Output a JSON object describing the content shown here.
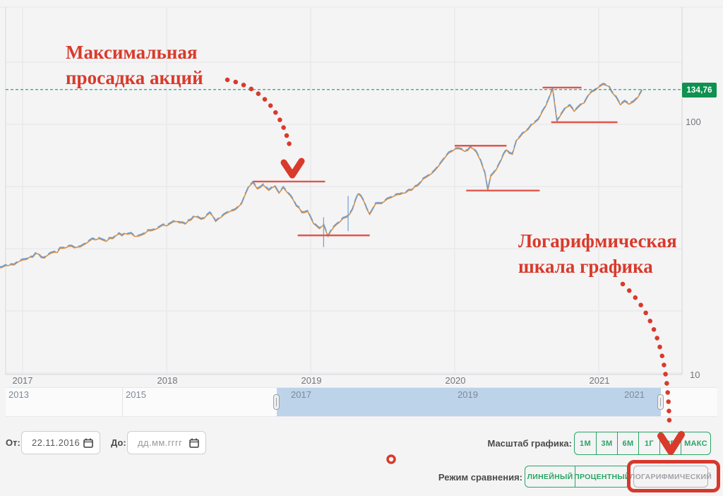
{
  "annotations": {
    "drawdown_label": "Максимальная\nпросадка акций",
    "log_scale_label": "Логарифмическая\nшкала графика",
    "red_color": "#d93a2b"
  },
  "chart_data": {
    "type": "line",
    "title": "",
    "x_ticks": [
      "2017",
      "2018",
      "2019",
      "2020",
      "2021"
    ],
    "y_axis": {
      "scale": "log",
      "tick_labels": [
        "100",
        "10"
      ],
      "tick_values": [
        100,
        10
      ]
    },
    "current_price": 134.76,
    "current_price_label": "134,76",
    "grid": true,
    "series": [
      {
        "name": "share-price",
        "color": "#6f9fd0",
        "alt_color": "#d98e3f",
        "points": [
          [
            2016.84,
            26.7
          ],
          [
            2016.92,
            27.5
          ],
          [
            2016.98,
            28.4
          ],
          [
            2017.05,
            29.5
          ],
          [
            2017.11,
            30.3
          ],
          [
            2017.15,
            29.2
          ],
          [
            2017.22,
            30.8
          ],
          [
            2017.28,
            31.9
          ],
          [
            2017.38,
            32.3
          ],
          [
            2017.46,
            34.0
          ],
          [
            2017.53,
            34.9
          ],
          [
            2017.58,
            34.0
          ],
          [
            2017.65,
            35.9
          ],
          [
            2017.73,
            36.3
          ],
          [
            2017.8,
            35.6
          ],
          [
            2017.87,
            37.5
          ],
          [
            2017.95,
            38.7
          ],
          [
            2018.0,
            39.2
          ],
          [
            2018.07,
            40.8
          ],
          [
            2018.13,
            39.8
          ],
          [
            2018.19,
            42.7
          ],
          [
            2018.24,
            41.6
          ],
          [
            2018.3,
            44.1
          ],
          [
            2018.34,
            40.8
          ],
          [
            2018.4,
            43.5
          ],
          [
            2018.46,
            45.0
          ],
          [
            2018.52,
            47.9
          ],
          [
            2018.57,
            56.0
          ],
          [
            2018.6,
            58.2
          ],
          [
            2018.63,
            54.9
          ],
          [
            2018.67,
            57.0
          ],
          [
            2018.71,
            54.2
          ],
          [
            2018.75,
            56.3
          ],
          [
            2018.78,
            52.8
          ],
          [
            2018.81,
            55.6
          ],
          [
            2018.86,
            51.5
          ],
          [
            2018.9,
            47.0
          ],
          [
            2018.94,
            44.1
          ],
          [
            2018.98,
            44.7
          ],
          [
            2019.02,
            40.0
          ],
          [
            2019.06,
            38.2
          ],
          [
            2019.09,
            39.5
          ],
          [
            2019.12,
            35.6
          ],
          [
            2019.16,
            38.7
          ],
          [
            2019.2,
            40.5
          ],
          [
            2019.25,
            42.4
          ],
          [
            2019.29,
            45.5
          ],
          [
            2019.33,
            52.5
          ],
          [
            2019.37,
            48.9
          ],
          [
            2019.41,
            43.5
          ],
          [
            2019.45,
            47.9
          ],
          [
            2019.51,
            48.9
          ],
          [
            2019.58,
            51.5
          ],
          [
            2019.64,
            52.8
          ],
          [
            2019.7,
            54.2
          ],
          [
            2019.76,
            57.8
          ],
          [
            2019.82,
            62.0
          ],
          [
            2019.89,
            67.9
          ],
          [
            2019.96,
            76.3
          ],
          [
            2020.02,
            79.3
          ],
          [
            2020.07,
            77.3
          ],
          [
            2020.11,
            80.3
          ],
          [
            2020.15,
            76.8
          ],
          [
            2020.18,
            71.0
          ],
          [
            2020.21,
            63.3
          ],
          [
            2020.23,
            54.2
          ],
          [
            2020.25,
            61.6
          ],
          [
            2020.29,
            65.7
          ],
          [
            2020.32,
            71.0
          ],
          [
            2020.36,
            78.3
          ],
          [
            2020.4,
            75.3
          ],
          [
            2020.43,
            85.7
          ],
          [
            2020.47,
            90.8
          ],
          [
            2020.51,
            94.4
          ],
          [
            2020.55,
            100.0
          ],
          [
            2020.58,
            103.3
          ],
          [
            2020.61,
            111.6
          ],
          [
            2020.65,
            123.7
          ],
          [
            2020.68,
            137.2
          ],
          [
            2020.71,
            101.9
          ],
          [
            2020.74,
            108.7
          ],
          [
            2020.77,
            115.2
          ],
          [
            2020.8,
            117.5
          ],
          [
            2020.83,
            111.6
          ],
          [
            2020.86,
            116.0
          ],
          [
            2020.9,
            120.6
          ],
          [
            2020.93,
            129.4
          ],
          [
            2020.97,
            134.5
          ],
          [
            2021.0,
            139.0
          ],
          [
            2021.03,
            142.6
          ],
          [
            2021.07,
            139.9
          ],
          [
            2021.09,
            132.8
          ],
          [
            2021.12,
            126.9
          ],
          [
            2021.15,
            118.3
          ],
          [
            2021.18,
            122.1
          ],
          [
            2021.21,
            119.0
          ],
          [
            2021.24,
            121.4
          ],
          [
            2021.27,
            126.1
          ],
          [
            2021.3,
            134.8
          ]
        ]
      }
    ],
    "spikes": [
      [
        2019.09,
        42,
        32
      ],
      [
        2019.26,
        51,
        37
      ]
    ],
    "drawdowns": [
      {
        "high": 58.2,
        "high_from": 2018.6,
        "high_to": 2019.1,
        "low": 35.6,
        "low_from": 2018.91,
        "low_to": 2019.41
      },
      {
        "high": 80.7,
        "high_from": 2020.0,
        "high_to": 2020.36,
        "low": 53.6,
        "low_from": 2020.08,
        "low_to": 2020.59
      },
      {
        "high": 137.2,
        "high_from": 2020.61,
        "high_to": 2020.88,
        "low": 100.0,
        "low_from": 2020.67,
        "low_to": 2021.13
      }
    ],
    "drawdown_line_color": "#e0564b",
    "price_line_color": "#2aa183",
    "tag_color": "#0f9150"
  },
  "navigator": {
    "labels": [
      "2013",
      "2015",
      "2017",
      "2019",
      "2021"
    ],
    "selection_color": "#bdd3ea"
  },
  "date_filter": {
    "from_label": "От:",
    "from_value": "22.11.2016",
    "to_label": "До:",
    "to_placeholder": "дд.мм.гггг"
  },
  "scale_control": {
    "label": "Масштаб графика:",
    "accent": "#2aa564",
    "buttons": [
      {
        "label": "1М"
      },
      {
        "label": "3М"
      },
      {
        "label": "6М"
      },
      {
        "label": "1Г"
      },
      {
        "label": "3Г"
      },
      {
        "label": "МАКС"
      }
    ]
  },
  "mode_control": {
    "label": "Режим сравнения:",
    "buttons": [
      {
        "label": "ЛИНЕЙНЫЙ"
      },
      {
        "label": "ПРОЦЕНТНЫЙ"
      },
      {
        "label": "ЛОГАРИФМИЧЕСКИЙ",
        "state": "active"
      }
    ]
  }
}
